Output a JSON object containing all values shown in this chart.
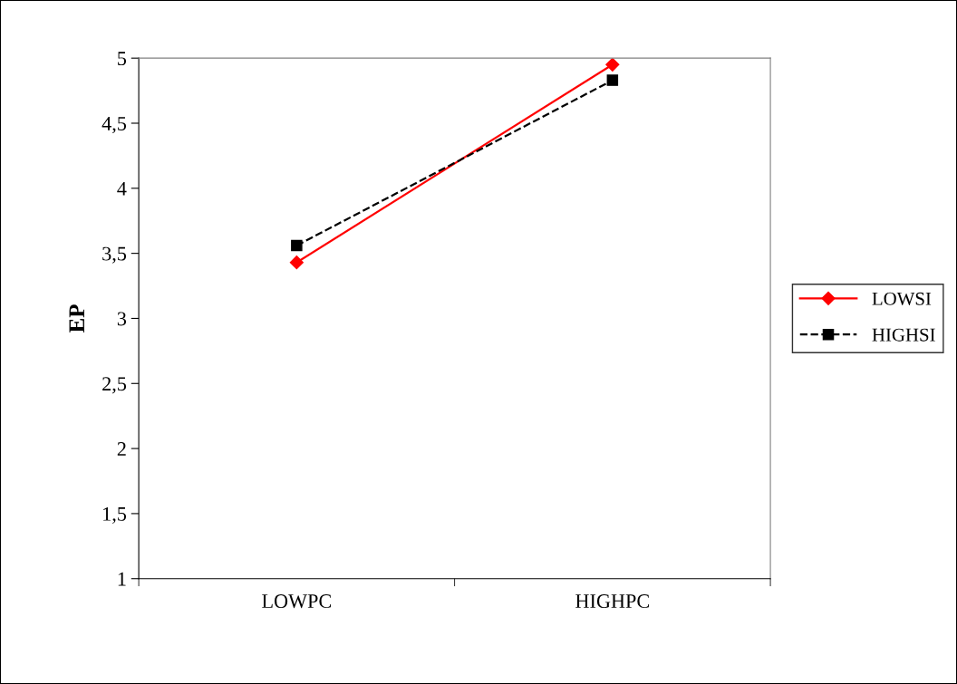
{
  "chart_data": {
    "type": "line",
    "ylabel": "EP",
    "categories": [
      "LOWPC",
      "HIGHPC"
    ],
    "series": [
      {
        "name": "LOWSI",
        "color": "#ff0000",
        "values": [
          3.43,
          4.95
        ],
        "marker": "diamond",
        "line_style": "solid"
      },
      {
        "name": "HIGHSI",
        "color": "#000000",
        "values": [
          3.56,
          4.83
        ],
        "marker": "square",
        "line_style": "dashed"
      }
    ],
    "ylim": [
      1,
      5
    ],
    "yticks": [
      1,
      {
        "value": 1.5,
        "label": "1,5"
      },
      2,
      {
        "value": 2.5,
        "label": "2,5"
      },
      3,
      {
        "value": 3.5,
        "label": "3,5"
      },
      4,
      {
        "value": 4.5,
        "label": "4,5"
      },
      5
    ],
    "grid": false,
    "legend": "right"
  }
}
